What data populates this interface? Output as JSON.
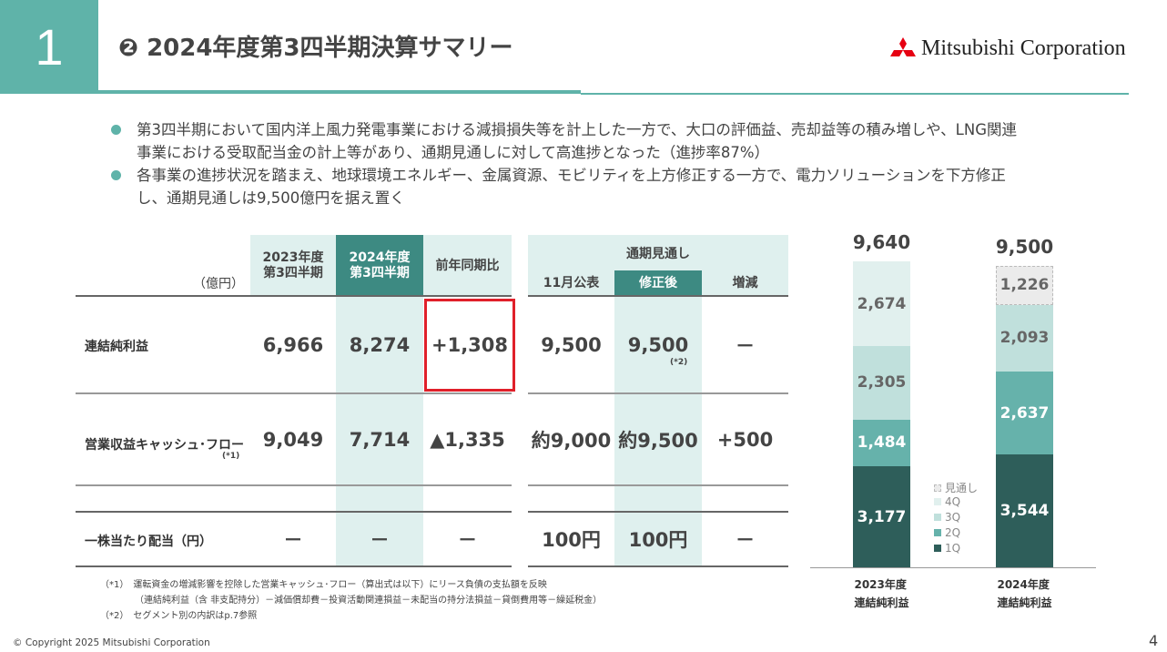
{
  "header": {
    "section_number": "1",
    "title": "❷ 2024年度第3四半期決算サマリー",
    "logo": "Mitsubishi Corporation"
  },
  "bullets": [
    "第3四半期において国内洋上風力発電事業における減損損失等を計上した一方で、大口の評価益、売却益等の積み増しや、LNG関連事業における受取配当金の計上等があり、通期見通しに対して高進捗となった（進捗率87%）",
    "各事業の進捗状況を踏まえ、地球環境エネルギー、金属資源、モビリティを上方修正する一方で、電力ソリューションを下方修正し、通期見通しは9,500億円を据え置く"
  ],
  "table": {
    "unit": "（億円）",
    "headers": {
      "fy2023": "2023年度\n第3四半期",
      "fy2024": "2024年度\n第3四半期",
      "yoy": "前年同期比",
      "forecast": "通期見通し",
      "nov": "11月公表",
      "revised": "修正後",
      "change": "増減"
    },
    "rows": [
      {
        "label": "連結純利益",
        "note": "",
        "fy2023": "6,966",
        "fy2024": "8,274",
        "yoy": "+1,308",
        "nov": "9,500",
        "revised": "9,500",
        "revised_note": "(*2)",
        "change": "－"
      },
      {
        "label": "営業収益キャッシュ･フロー",
        "note": "(*1)",
        "fy2023": "9,049",
        "fy2024": "7,714",
        "yoy": "▲1,335",
        "nov": "約9,000",
        "revised": "約9,500",
        "revised_note": "",
        "change": "+500"
      },
      {
        "label": "一株当たり配当（円）",
        "note": "",
        "fy2023": "－",
        "fy2024": "－",
        "yoy": "－",
        "nov": "100円",
        "revised": "100円",
        "revised_note": "",
        "change": "－"
      }
    ]
  },
  "footnotes": [
    "（*1）　運転資金の増減影響を控除した営業キャッシュ･フロー（算出式は以下）にリース負債の支払額を反映",
    "（連結純利益（含 非支配持分）－減価償却費－投資活動関連損益－未配当の持分法損益－貸倒費用等－繰延税金）",
    "（*2）　セグメント別の内訳はp.7参照"
  ],
  "footer": {
    "copyright": "© Copyright 2025 Mitsubishi Corporation",
    "page": "4"
  },
  "chart_data": {
    "type": "bar",
    "stacked": true,
    "categories": [
      "2023年度\n連結純利益",
      "2024年度\n連結純利益"
    ],
    "series": [
      {
        "name": "1Q",
        "color": "#2e5e5a",
        "values": [
          3177,
          3544
        ]
      },
      {
        "name": "2Q",
        "color": "#66b2ab",
        "values": [
          1484,
          2637
        ]
      },
      {
        "name": "3Q",
        "color": "#c0e0dc",
        "values": [
          2305,
          2093
        ]
      },
      {
        "name": "4Q",
        "color": "#e1f0ee",
        "values": [
          2674,
          null
        ]
      },
      {
        "name": "見通し",
        "color": "#ebebeb",
        "values": [
          null,
          1226
        ]
      }
    ],
    "totals": [
      "9,640",
      "9,500"
    ],
    "legend_order": [
      "見通し",
      "4Q",
      "3Q",
      "2Q",
      "1Q"
    ],
    "legend_position": "center"
  }
}
